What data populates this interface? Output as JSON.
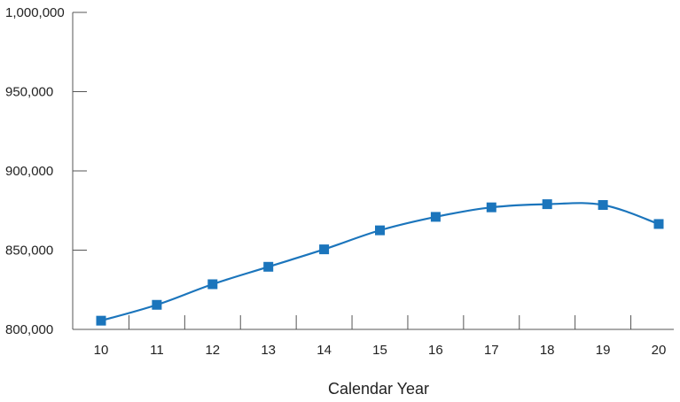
{
  "chart_data": {
    "type": "line",
    "title": "",
    "xlabel": "Calendar Year",
    "ylabel": "",
    "categories": [
      "10",
      "11",
      "12",
      "13",
      "14",
      "15",
      "16",
      "17",
      "18",
      "19",
      "20"
    ],
    "series": [
      {
        "values": [
          805500,
          815500,
          828500,
          839500,
          850500,
          862500,
          871000,
          877000,
          879000,
          878500,
          866500
        ]
      }
    ],
    "y_ticks": [
      "800,000",
      "850,000",
      "900,000",
      "950,000",
      "1,000,000"
    ],
    "ylim": [
      800000,
      1000000
    ],
    "grid": false,
    "legend": "none",
    "line_color": "#1b75bc",
    "marker": "square"
  }
}
